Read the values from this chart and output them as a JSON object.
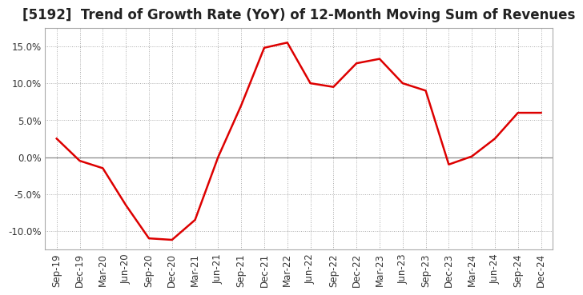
{
  "title": "[5192]  Trend of Growth Rate (YoY) of 12-Month Moving Sum of Revenues",
  "line_color": "#dd0000",
  "background_color": "#ffffff",
  "plot_bg_color": "#ffffff",
  "grid_color": "#aaaaaa",
  "zero_line_color": "#888888",
  "x_labels": [
    "Sep-19",
    "Dec-19",
    "Mar-20",
    "Jun-20",
    "Sep-20",
    "Dec-20",
    "Mar-21",
    "Jun-21",
    "Sep-21",
    "Dec-21",
    "Mar-22",
    "Jun-22",
    "Sep-22",
    "Dec-22",
    "Mar-23",
    "Jun-23",
    "Sep-23",
    "Dec-23",
    "Mar-24",
    "Jun-24",
    "Sep-24",
    "Dec-24"
  ],
  "y_values": [
    2.5,
    -0.5,
    -1.5,
    -6.5,
    -11.0,
    -11.2,
    -8.5,
    0.0,
    7.0,
    14.8,
    15.5,
    10.0,
    9.5,
    12.7,
    13.3,
    10.0,
    9.0,
    -1.0,
    0.1,
    2.5,
    6.0,
    6.0
  ],
  "ylim": [
    -12.5,
    17.5
  ],
  "yticks": [
    -10.0,
    -5.0,
    0.0,
    5.0,
    10.0,
    15.0
  ],
  "title_fontsize": 12,
  "tick_fontsize": 8.5,
  "line_width": 1.8
}
